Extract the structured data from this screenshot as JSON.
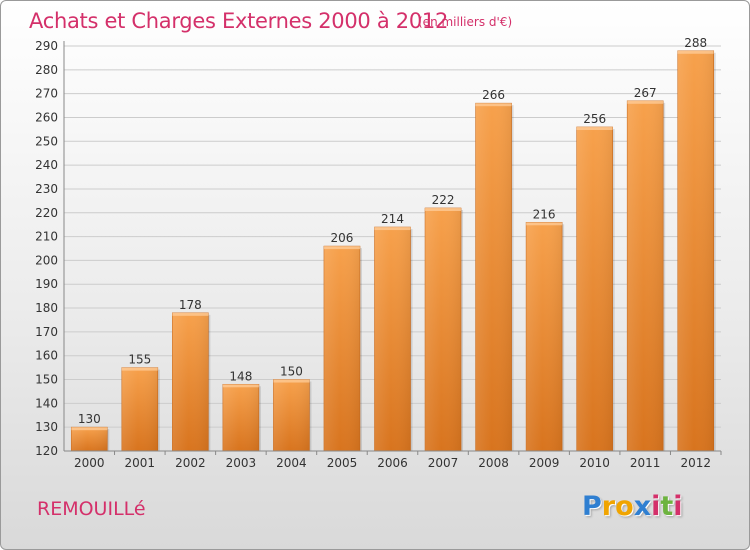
{
  "chart_data": {
    "type": "bar",
    "title": "Achats et Charges Externes 2000 à 2012",
    "subtitle": "(en milliers d'€)",
    "categories": [
      "2000",
      "2001",
      "2002",
      "2003",
      "2004",
      "2005",
      "2006",
      "2007",
      "2008",
      "2009",
      "2010",
      "2011",
      "2012"
    ],
    "values": [
      130,
      155,
      178,
      148,
      150,
      206,
      214,
      222,
      266,
      216,
      256,
      267,
      288
    ],
    "ylim": [
      120,
      290
    ],
    "yticks": [
      120,
      130,
      140,
      150,
      160,
      170,
      180,
      190,
      200,
      210,
      220,
      230,
      240,
      250,
      260,
      270,
      280,
      290
    ],
    "grid": true,
    "legend": "none",
    "xlabel": "",
    "ylabel": ""
  },
  "footer": {
    "commune": "REMOUILLé",
    "logo_letters": [
      "P",
      "r",
      "o",
      "x",
      "i",
      "t",
      "i"
    ]
  },
  "colors": {
    "title": "#d4306a",
    "bar_top": "#f7a14c",
    "bar_bottom": "#d8741e",
    "grid": "#cccccc",
    "axis_text": "#333333",
    "logo": [
      "#2f7fd1",
      "#f0a400",
      "#f0a400",
      "#2f7fd1",
      "#d4306a",
      "#6db33f",
      "#d4306a"
    ]
  }
}
